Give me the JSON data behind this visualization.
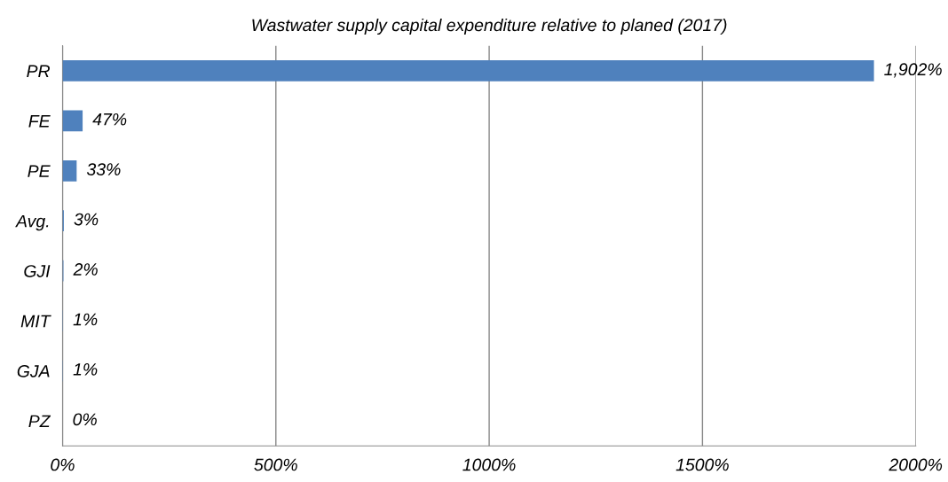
{
  "chart_data": {
    "type": "bar",
    "orientation": "horizontal",
    "title": "Wastwater supply capital expenditure relative to planed (2017)",
    "categories": [
      "PR",
      "FE",
      "PE",
      "Avg.",
      "GJI",
      "MIT",
      "GJA",
      "PZ"
    ],
    "values": [
      1902,
      47,
      33,
      3,
      2,
      1,
      1,
      0
    ],
    "value_labels": [
      "1,902%",
      "47%",
      "33%",
      "3%",
      "2%",
      "1%",
      "1%",
      "0%"
    ],
    "color": "#4f81bd",
    "xlim": [
      0,
      2000
    ],
    "xticks": [
      {
        "value": 0,
        "label": "0%"
      },
      {
        "value": 500,
        "label": "500%"
      },
      {
        "value": 1000,
        "label": "1000%"
      },
      {
        "value": 1500,
        "label": "1500%"
      },
      {
        "value": 2000,
        "label": "2000%"
      }
    ],
    "grid": "x"
  }
}
